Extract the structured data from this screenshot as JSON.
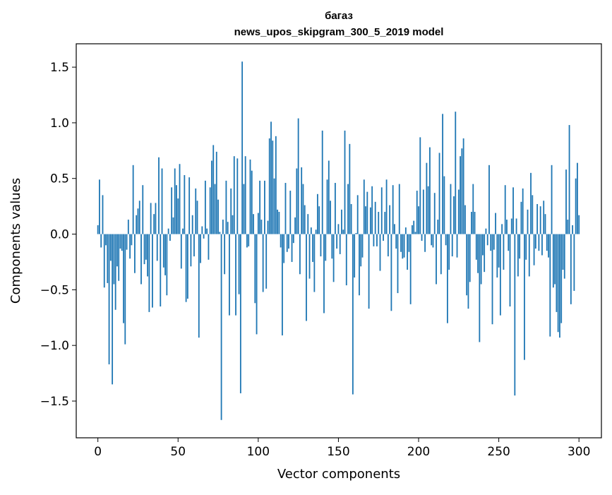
{
  "chart_data": {
    "type": "bar",
    "title_line1": "багаз",
    "title_line2": "news_upos_skipgram_300_5_2019 model",
    "xlabel": "Vector components",
    "ylabel": "Components values",
    "xlim": [
      -13.5,
      314
    ],
    "ylim": [
      -1.83,
      1.71
    ],
    "xticks": [
      {
        "value": 0,
        "label": "0"
      },
      {
        "value": 50,
        "label": "50"
      },
      {
        "value": 100,
        "label": "100"
      },
      {
        "value": 150,
        "label": "150"
      },
      {
        "value": 200,
        "label": "200"
      },
      {
        "value": 250,
        "label": "250"
      },
      {
        "value": 300,
        "label": "300"
      }
    ],
    "yticks": [
      {
        "value": 1.5,
        "label": "1.5"
      },
      {
        "value": 1.0,
        "label": "1.0"
      },
      {
        "value": 0.5,
        "label": "0.5"
      },
      {
        "value": 0.0,
        "label": "0.0"
      },
      {
        "value": -0.5,
        "label": "−0.5"
      },
      {
        "value": -1.0,
        "label": "−1.0"
      },
      {
        "value": -1.5,
        "label": "−1.5"
      }
    ],
    "color": "#1f77b4",
    "values": [
      0.08,
      0.49,
      -0.12,
      0.35,
      -0.48,
      -0.1,
      -0.44,
      -1.17,
      -0.24,
      -1.35,
      -0.45,
      -0.68,
      -0.29,
      -0.42,
      -0.13,
      -0.15,
      -0.8,
      -0.99,
      -0.14,
      0.13,
      -0.22,
      -0.1,
      0.62,
      -0.35,
      0.17,
      0.23,
      0.3,
      -0.45,
      0.44,
      -0.27,
      -0.23,
      -0.38,
      -0.7,
      0.28,
      -0.66,
      0.18,
      0.28,
      -0.24,
      0.69,
      -0.65,
      0.59,
      -0.3,
      -0.37,
      -0.55,
      0.05,
      -0.06,
      0.42,
      0.15,
      0.59,
      0.44,
      0.32,
      0.63,
      -0.31,
      0.05,
      0.53,
      -0.61,
      -0.58,
      0.51,
      -0.29,
      0.17,
      -0.2,
      0.41,
      0.3,
      -0.93,
      -0.26,
      0.07,
      -0.04,
      0.48,
      0.05,
      -0.23,
      0.42,
      0.66,
      0.8,
      0.45,
      0.74,
      0.31,
      0.02,
      -1.67,
      0.13,
      -0.36,
      0.48,
      0.11,
      -0.73,
      0.41,
      0.17,
      0.7,
      -0.73,
      0.68,
      -0.54,
      -1.43,
      1.55,
      0.45,
      0.7,
      -0.12,
      -0.11,
      0.67,
      0.57,
      0.18,
      -0.62,
      -0.9,
      0.19,
      0.48,
      0.13,
      -0.52,
      0.48,
      -0.49,
      0.12,
      0.86,
      1.01,
      0.84,
      0.5,
      0.88,
      0.22,
      0.2,
      -0.12,
      -0.91,
      -0.26,
      0.46,
      -0.16,
      -0.13,
      0.39,
      -0.25,
      -0.08,
      0.15,
      0.59,
      1.04,
      -0.36,
      0.6,
      0.45,
      0.26,
      -0.78,
      0.18,
      -0.4,
      0.06,
      -0.25,
      -0.52,
      0.04,
      0.36,
      0.25,
      -0.2,
      0.93,
      -0.71,
      -0.24,
      0.49,
      0.66,
      0.3,
      -0.22,
      -0.43,
      0.46,
      -0.13,
      0.09,
      -0.18,
      0.22,
      0.04,
      0.93,
      -0.46,
      0.45,
      0.81,
      0.27,
      -1.44,
      -0.39,
      0.01,
      0.35,
      -0.55,
      -0.29,
      -0.21,
      0.49,
      0.25,
      0.38,
      -0.67,
      0.24,
      0.43,
      -0.11,
      0.29,
      -0.11,
      0.2,
      -0.33,
      0.42,
      -0.06,
      0.2,
      0.49,
      -0.2,
      0.26,
      -0.69,
      0.44,
      0.09,
      -0.13,
      -0.53,
      0.45,
      -0.16,
      -0.22,
      -0.21,
      0.06,
      -0.32,
      -0.16,
      -0.63,
      0.08,
      0.12,
      0.02,
      0.39,
      0.25,
      0.87,
      -0.06,
      0.4,
      -0.16,
      0.64,
      0.43,
      0.78,
      -0.1,
      -0.12,
      0.37,
      -0.45,
      0.13,
      0.73,
      -0.36,
      1.08,
      0.52,
      -0.1,
      -0.8,
      -0.32,
      0.45,
      -0.2,
      0.34,
      1.1,
      -0.21,
      0.4,
      0.7,
      0.77,
      0.86,
      0.26,
      -0.55,
      -0.67,
      -0.43,
      0.2,
      0.45,
      0.2,
      -0.23,
      -0.35,
      -0.97,
      -0.45,
      -0.19,
      -0.34,
      0.05,
      -0.1,
      0.62,
      -0.15,
      -0.81,
      -0.14,
      0.19,
      -0.39,
      -0.3,
      -0.73,
      0.09,
      -0.32,
      0.44,
      0.13,
      -0.15,
      -0.65,
      0.14,
      0.42,
      -1.45,
      0.14,
      -0.38,
      -0.22,
      0.29,
      0.41,
      -1.13,
      -0.23,
      0.22,
      -0.38,
      0.55,
      0.35,
      -0.28,
      -0.13,
      0.27,
      -0.15,
      0.25,
      -0.19,
      0.3,
      0.18,
      -0.15,
      -0.21,
      -0.92,
      0.62,
      -0.48,
      -0.45,
      -0.7,
      -0.88,
      -0.93,
      -0.8,
      -0.32,
      -0.4,
      0.58,
      0.13,
      0.98,
      -0.63,
      0.08,
      -0.51,
      0.5,
      0.64,
      0.17
    ]
  }
}
